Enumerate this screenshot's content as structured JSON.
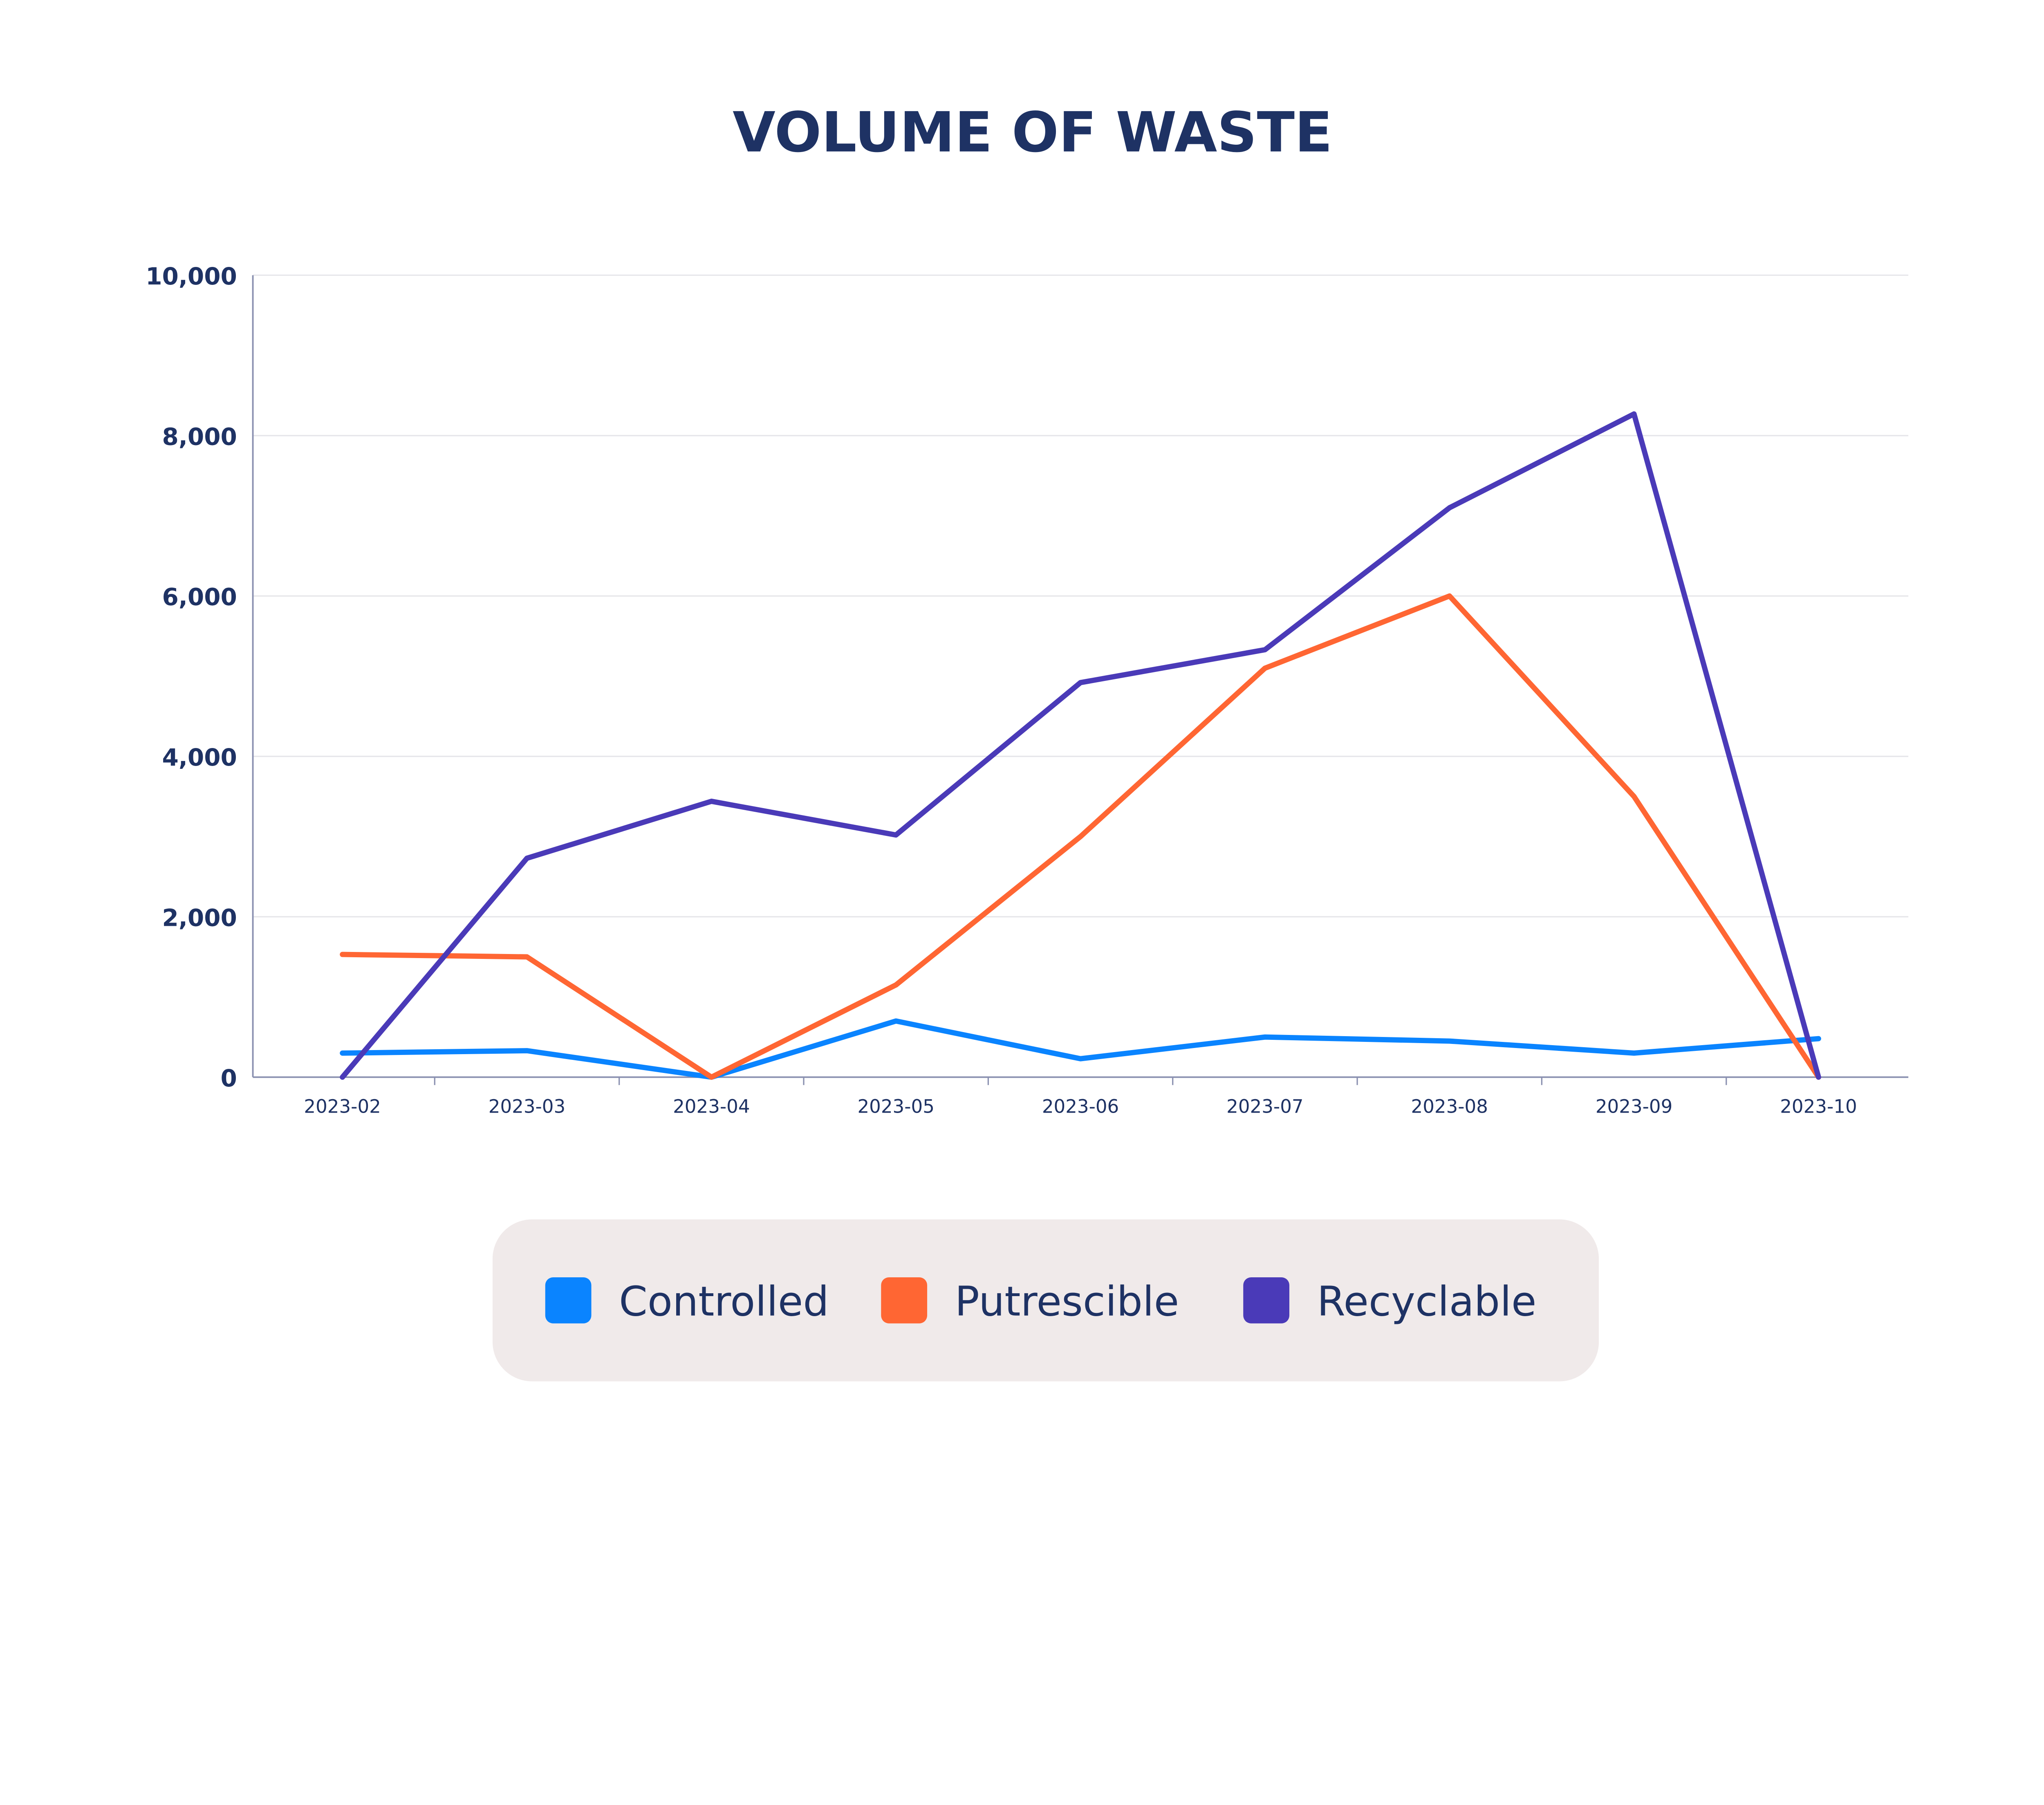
{
  "chart_data": {
    "type": "line",
    "title": "VOLUME OF WASTE",
    "xlabel": "",
    "ylabel": "",
    "categories": [
      "2023-02",
      "2023-03",
      "2023-04",
      "2023-05",
      "2023-06",
      "2023-07",
      "2023-08",
      "2023-09",
      "2023-10"
    ],
    "ylim": [
      0,
      10000
    ],
    "yticks": [
      0,
      2000,
      4000,
      6000,
      8000,
      10000
    ],
    "ytick_labels": [
      "0",
      "2,000",
      "4,000",
      "6,000",
      "8,000",
      "10,000"
    ],
    "grid": true,
    "legend_position": "bottom",
    "series": [
      {
        "name": "Controlled",
        "color": "#0a84ff",
        "values": [
          300,
          330,
          0,
          700,
          230,
          500,
          450,
          300,
          480
        ]
      },
      {
        "name": "Putrescible",
        "color": "#ff6633",
        "values": [
          1530,
          1500,
          0,
          1150,
          3000,
          5100,
          6000,
          3500,
          0
        ]
      },
      {
        "name": "Recyclable",
        "color": "#4a3ab8",
        "values": [
          0,
          2730,
          3440,
          3020,
          4920,
          5330,
          7100,
          8270,
          0
        ]
      }
    ]
  }
}
